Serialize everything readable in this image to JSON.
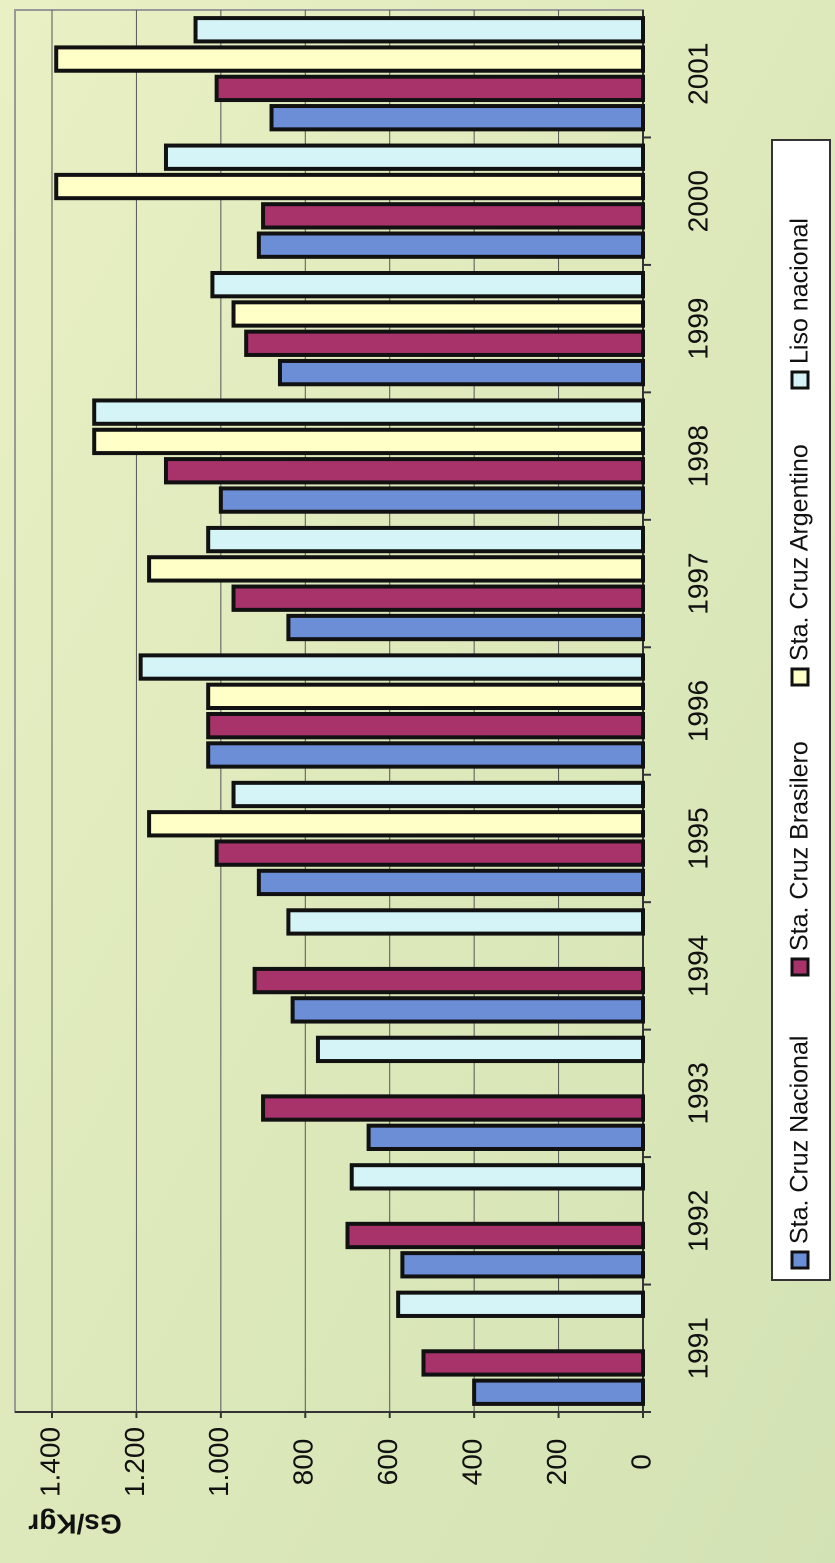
{
  "chart_data": {
    "type": "bar",
    "y_label": "Gs/Kgr",
    "categories": [
      "1991",
      "1992",
      "1993",
      "1994",
      "1995",
      "1996",
      "1997",
      "1998",
      "1999",
      "2000",
      "2001"
    ],
    "series": [
      {
        "name": "Sta. Cruz Nacional",
        "color": "#6b8ed6",
        "values": [
          400,
          570,
          650,
          830,
          910,
          1030,
          840,
          1000,
          860,
          910,
          880
        ]
      },
      {
        "name": "Sta. Cruz Brasilero",
        "color": "#a8336b",
        "values": [
          520,
          700,
          900,
          920,
          1010,
          1030,
          970,
          1130,
          940,
          900,
          1010
        ]
      },
      {
        "name": "Sta. Cruz Argentino",
        "color": "#ffffc8",
        "values": [
          null,
          null,
          null,
          null,
          1170,
          1030,
          1170,
          1300,
          970,
          1390,
          1390
        ]
      },
      {
        "name": "Liso nacional",
        "color": "#d4f4f8",
        "values": [
          580,
          690,
          770,
          840,
          970,
          1190,
          1030,
          1300,
          1020,
          1130,
          1060
        ]
      }
    ],
    "ylim": [
      0,
      1400
    ],
    "yticks": [
      0,
      200,
      400,
      600,
      800,
      {
        "value": 1000,
        "label": "1.000"
      },
      {
        "value": 1200,
        "label": "1.200"
      },
      {
        "value": 1400,
        "label": "1.400"
      }
    ],
    "grid": true,
    "legend": "right"
  }
}
